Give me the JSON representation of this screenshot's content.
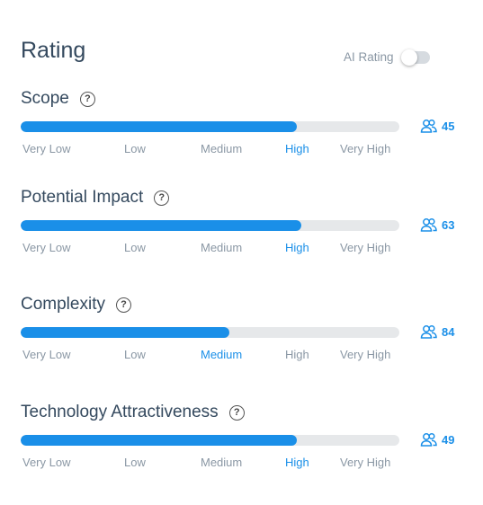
{
  "title": "Rating",
  "ai_rating": {
    "label": "AI Rating",
    "enabled": false
  },
  "scale_labels": [
    "Very Low",
    "Low",
    "Medium",
    "High",
    "Very High"
  ],
  "accent_color": "#1a8fe8",
  "criteria": [
    {
      "name": "Scope",
      "help_icon": "question-circle-icon",
      "fill_fraction": 0.73,
      "selected_level": 3,
      "selected_label": "High",
      "voter_count": "45"
    },
    {
      "name": "Potential Impact",
      "help_icon": "question-circle-icon",
      "fill_fraction": 0.74,
      "selected_level": 3,
      "selected_label": "High",
      "voter_count": "63"
    },
    {
      "name": "Complexity",
      "help_icon": "question-circle-icon",
      "fill_fraction": 0.55,
      "selected_level": 2,
      "selected_label": "Medium",
      "voter_count": "84"
    },
    {
      "name": "Technology Attractiveness",
      "help_icon": "question-circle-icon",
      "fill_fraction": 0.73,
      "selected_level": 3,
      "selected_label": "High",
      "voter_count": "49"
    }
  ]
}
